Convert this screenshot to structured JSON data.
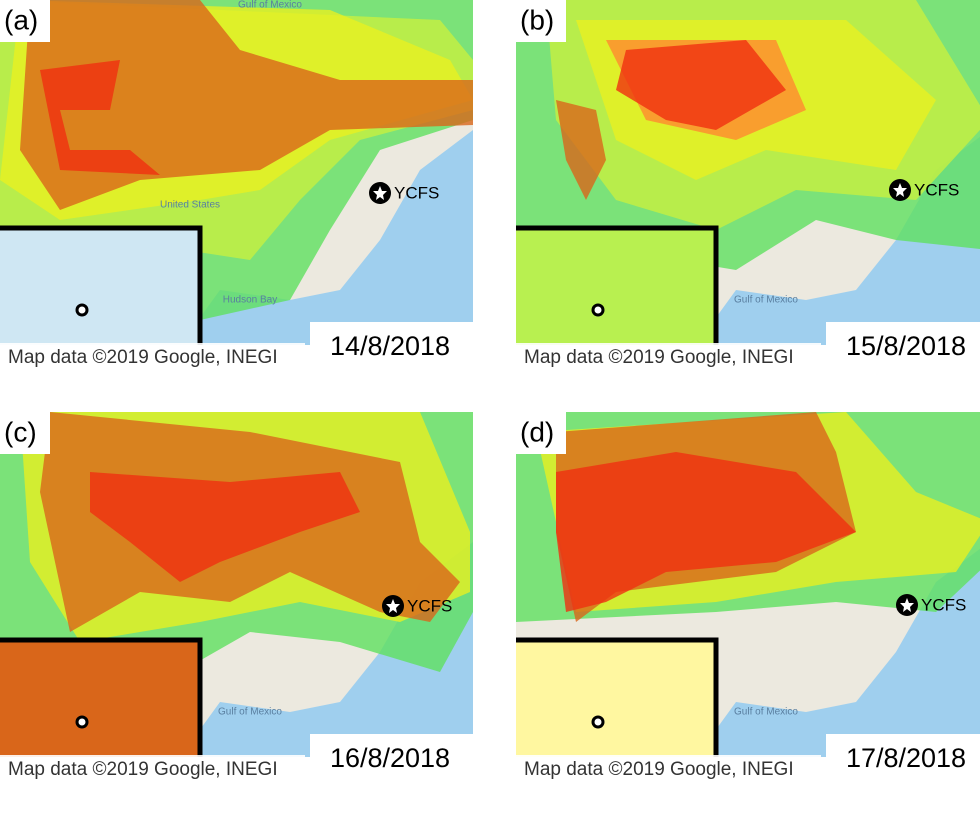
{
  "panels": [
    {
      "label": "(a)",
      "date": "14/8/2018",
      "attribution": "Map data ©2019 Google, INEGI",
      "station": "YCFS",
      "places": [
        "Hudson Bay",
        "Gulf of Mexico",
        "United States"
      ]
    },
    {
      "label": "(b)",
      "date": "15/8/2018",
      "attribution": "Map data ©2019 Google, INEGI",
      "station": "YCFS",
      "places": [
        "Gulf of Mexico"
      ]
    },
    {
      "label": "(c)",
      "date": "16/8/2018",
      "attribution": "Map data ©2019 Google, INEGI",
      "station": "YCFS",
      "places": [
        "Gulf of Mexico"
      ]
    },
    {
      "label": "(d)",
      "date": "17/8/2018",
      "attribution": "Map data ©2019 Google, INEGI",
      "station": "YCFS",
      "places": [
        "Gulf of Mexico"
      ]
    }
  ]
}
